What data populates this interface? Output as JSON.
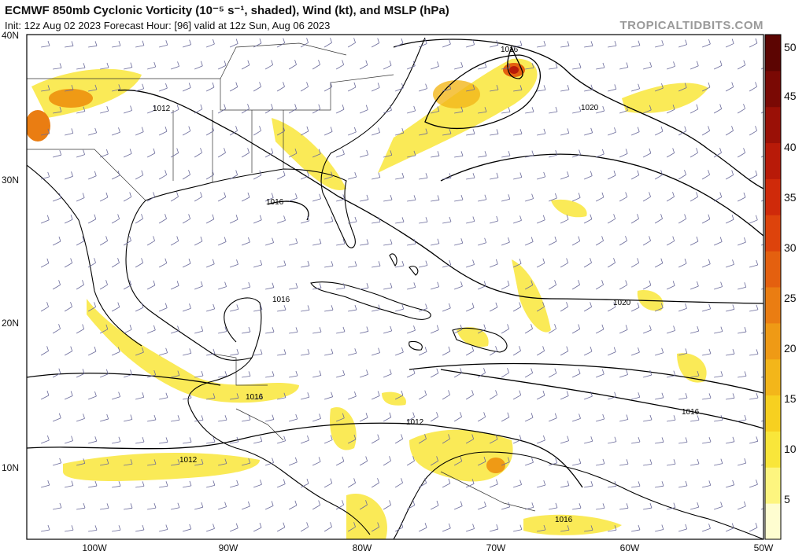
{
  "header": {
    "title": "ECMWF 850mb Cyclonic Vorticity (10⁻⁵ s⁻¹, shaded), Wind (kt), and MSLP (hPa)",
    "subtitle": "Init: 12z Aug 02 2023   Forecast Hour: [96]   valid at 12z Sun, Aug 06 2023",
    "brand": "TROPICALTIDBITS.COM"
  },
  "map": {
    "lat_labels": [
      "40N",
      "30N",
      "20N",
      "10N"
    ],
    "lon_labels": [
      "100W",
      "90W",
      "80W",
      "70W",
      "60W",
      "50W"
    ],
    "isobar_labels": [
      "1016",
      "1012",
      "1020",
      "1016",
      "1016",
      "1020",
      "1016",
      "1012",
      "1012",
      "1016",
      "1016"
    ]
  },
  "colorbar": {
    "ticks": [
      "50",
      "45",
      "40",
      "35",
      "30",
      "25",
      "20",
      "15",
      "10",
      "5"
    ],
    "colors": [
      "#fefdd0",
      "#fdf57f",
      "#f9e63a",
      "#f7d020",
      "#f3b61a",
      "#ef9a15",
      "#ea7d12",
      "#e4600f",
      "#dd430c",
      "#cf2a0a",
      "#b81a08",
      "#9a1006",
      "#7a0904",
      "#5c0502"
    ]
  }
}
